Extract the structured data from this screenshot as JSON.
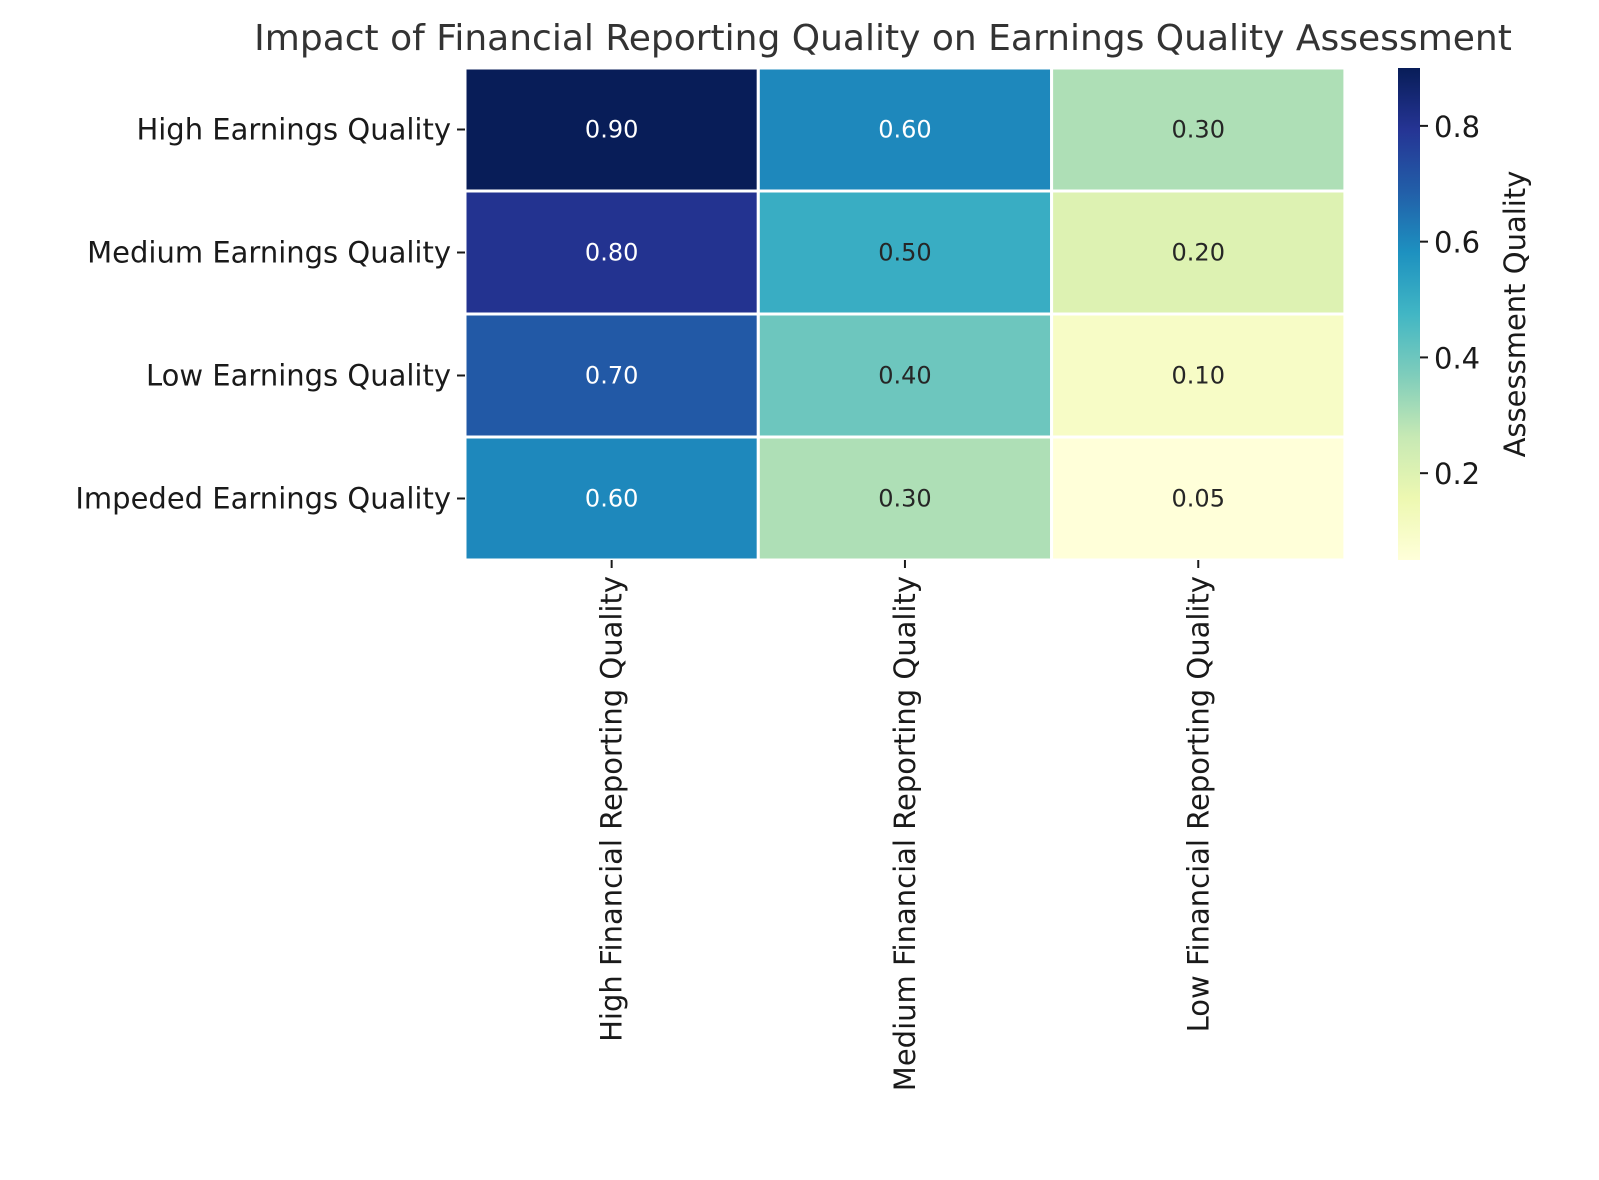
{
  "chart_data": {
    "type": "heatmap",
    "title": "Impact of Financial Reporting Quality on Earnings Quality Assessment",
    "rows": [
      "High Earnings Quality",
      "Medium Earnings Quality",
      "Low Earnings Quality",
      "Impeded Earnings Quality"
    ],
    "columns": [
      "High Financial Reporting Quality",
      "Medium Financial Reporting Quality",
      "Low Financial Reporting Quality"
    ],
    "values": [
      [
        0.9,
        0.6,
        0.3
      ],
      [
        0.8,
        0.5,
        0.2
      ],
      [
        0.7,
        0.4,
        0.1
      ],
      [
        0.6,
        0.3,
        0.05
      ]
    ],
    "value_format": "0.00",
    "colorbar": {
      "label": "Assessment Quality",
      "range": [
        0.05,
        0.9
      ],
      "ticks": [
        0.2,
        0.4,
        0.6,
        0.8
      ],
      "colormap": "YlGnBu",
      "colors": [
        "#ffffd9",
        "#edf8b1",
        "#c7e9b4",
        "#7fcdbb",
        "#41b6c4",
        "#1d91c0",
        "#225ea8",
        "#253494",
        "#081d58"
      ]
    },
    "cell_border_color": "#ffffff",
    "text_dark": "#262626",
    "text_light": "#ffffff"
  }
}
